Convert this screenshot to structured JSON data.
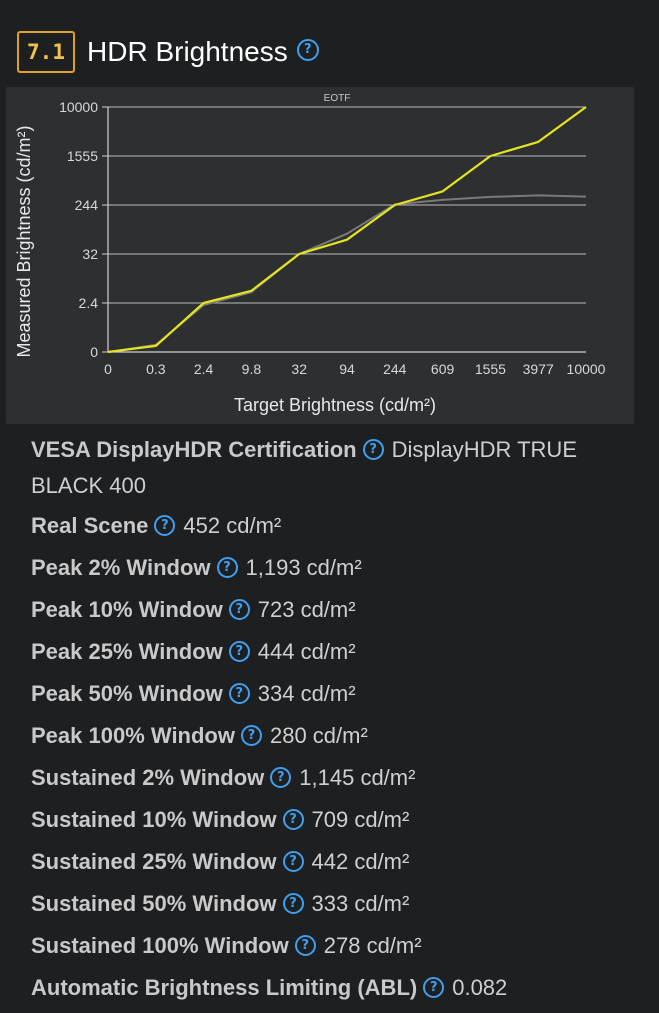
{
  "section": {
    "number": "7.1",
    "title": "HDR Brightness",
    "help_glyph": "?"
  },
  "chart_data": {
    "type": "line",
    "title": "EOTF",
    "xlabel": "Target Brightness (cd/m²)",
    "ylabel": "Measured Brightness (cd/m²)",
    "x_ticks": [
      "0",
      "0.3",
      "2.4",
      "9.8",
      "32",
      "94",
      "244",
      "609",
      "1555",
      "3977",
      "10000"
    ],
    "y_ticks": [
      "0",
      "2.4",
      "32",
      "244",
      "1555",
      "10000"
    ],
    "grid": true,
    "series": [
      {
        "color": "#e4e420",
        "x": [
          0,
          0.3,
          2.4,
          9.8,
          32,
          94,
          244,
          609,
          1555,
          3977,
          10000
        ],
        "y": [
          0,
          0.3,
          2.4,
          9.8,
          32,
          94,
          244,
          609,
          1555,
          3977,
          10000
        ]
      },
      {
        "color": "#7a7a7a",
        "x": [
          0,
          0.3,
          2.4,
          9.8,
          32,
          94,
          244,
          609,
          1555,
          3977,
          10000
        ],
        "y": [
          0,
          0.35,
          2.3,
          9,
          32,
          120,
          260,
          380,
          460,
          500,
          470
        ]
      }
    ]
  },
  "specs": [
    {
      "label": "VESA DisplayHDR Certification",
      "value": "DisplayHDR TRUE BLACK 400"
    },
    {
      "label": "Real Scene",
      "value": "452 cd/m²"
    },
    {
      "label": "Peak 2% Window",
      "value": "1,193 cd/m²"
    },
    {
      "label": "Peak 10% Window",
      "value": "723 cd/m²"
    },
    {
      "label": "Peak 25% Window",
      "value": "444 cd/m²"
    },
    {
      "label": "Peak 50% Window",
      "value": "334 cd/m²"
    },
    {
      "label": "Peak 100% Window",
      "value": "280 cd/m²"
    },
    {
      "label": "Sustained 2% Window",
      "value": "1,145 cd/m²"
    },
    {
      "label": "Sustained 10% Window",
      "value": "709 cd/m²"
    },
    {
      "label": "Sustained 25% Window",
      "value": "442 cd/m²"
    },
    {
      "label": "Sustained 50% Window",
      "value": "333 cd/m²"
    },
    {
      "label": "Sustained 100% Window",
      "value": "278 cd/m²"
    },
    {
      "label": "Automatic Brightness Limiting (ABL)",
      "value": "0.082"
    }
  ]
}
